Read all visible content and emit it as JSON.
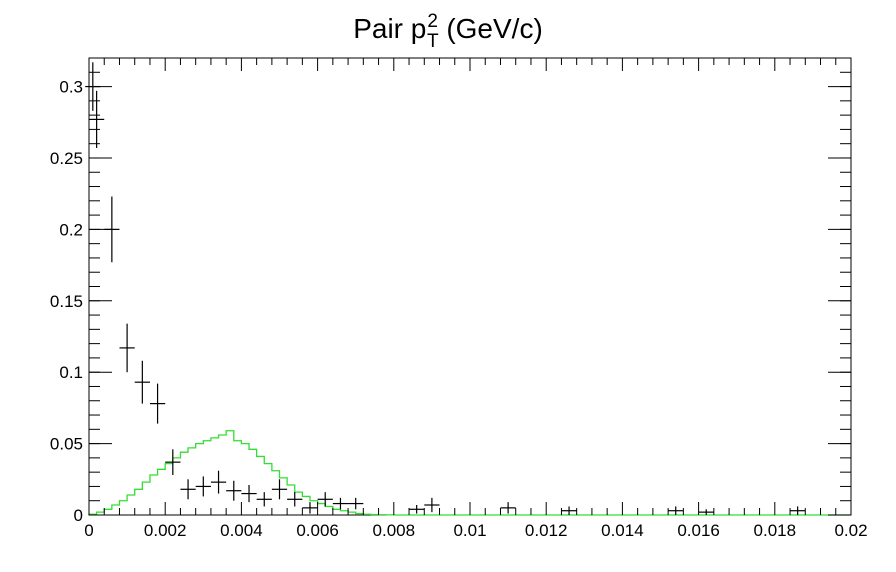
{
  "chart_data": {
    "type": "histogram",
    "title": {
      "main": "Pair p",
      "superscript": "2",
      "subscript": "T",
      "suffix": " (GeV/c)"
    },
    "xlim": [
      0,
      0.02
    ],
    "ylim": [
      0,
      0.32
    ],
    "x_ticks": [
      0,
      0.002,
      0.004,
      0.006,
      0.008,
      0.01,
      0.012,
      0.014,
      0.016,
      0.018,
      0.02
    ],
    "x_tick_labels": [
      "0",
      "0.002",
      "0.004",
      "0.006",
      "0.008",
      "0.01",
      "0.012",
      "0.014",
      "0.016",
      "0.018",
      "0.02"
    ],
    "y_ticks": [
      0,
      0.05,
      0.1,
      0.15,
      0.2,
      0.25,
      0.3
    ],
    "y_tick_labels": [
      "0",
      "0.05",
      "0.1",
      "0.15",
      "0.2",
      "0.25",
      "0.3"
    ],
    "grid": false,
    "legend": "none",
    "data_points": {
      "color": "#000000",
      "bin_half_width": 0.0002,
      "points": [
        {
          "x": 0.0001,
          "y": 0.3,
          "err": 0.017
        },
        {
          "x": 0.0002,
          "y": 0.277,
          "err": 0.02
        },
        {
          "x": 0.0006,
          "y": 0.2,
          "err": 0.023
        },
        {
          "x": 0.001,
          "y": 0.117,
          "err": 0.017
        },
        {
          "x": 0.0014,
          "y": 0.093,
          "err": 0.015
        },
        {
          "x": 0.0018,
          "y": 0.078,
          "err": 0.014
        },
        {
          "x": 0.0022,
          "y": 0.037,
          "err": 0.009
        },
        {
          "x": 0.0026,
          "y": 0.018,
          "err": 0.007
        },
        {
          "x": 0.003,
          "y": 0.02,
          "err": 0.007
        },
        {
          "x": 0.0034,
          "y": 0.023,
          "err": 0.008
        },
        {
          "x": 0.0038,
          "y": 0.017,
          "err": 0.007
        },
        {
          "x": 0.0042,
          "y": 0.015,
          "err": 0.006
        },
        {
          "x": 0.0046,
          "y": 0.011,
          "err": 0.005
        },
        {
          "x": 0.005,
          "y": 0.018,
          "err": 0.007
        },
        {
          "x": 0.0054,
          "y": 0.011,
          "err": 0.005
        },
        {
          "x": 0.0058,
          "y": 0.005,
          "err": 0.004
        },
        {
          "x": 0.0062,
          "y": 0.011,
          "err": 0.005
        },
        {
          "x": 0.0066,
          "y": 0.008,
          "err": 0.004
        },
        {
          "x": 0.007,
          "y": 0.008,
          "err": 0.004
        },
        {
          "x": 0.0086,
          "y": 0.004,
          "err": 0.003
        },
        {
          "x": 0.009,
          "y": 0.007,
          "err": 0.005
        },
        {
          "x": 0.011,
          "y": 0.005,
          "err": 0.004
        },
        {
          "x": 0.0126,
          "y": 0.003,
          "err": 0.003
        },
        {
          "x": 0.0154,
          "y": 0.003,
          "err": 0.003
        },
        {
          "x": 0.0162,
          "y": 0.002,
          "err": 0.002
        },
        {
          "x": 0.0186,
          "y": 0.003,
          "err": 0.003
        }
      ]
    },
    "reference_histogram": {
      "color": "#33dd33",
      "bin_width": 0.0002,
      "values": [
        0.0005,
        0.002,
        0.004,
        0.007,
        0.01,
        0.014,
        0.018,
        0.023,
        0.028,
        0.032,
        0.036,
        0.04,
        0.044,
        0.047,
        0.05,
        0.052,
        0.054,
        0.056,
        0.059,
        0.052,
        0.05,
        0.046,
        0.041,
        0.036,
        0.031,
        0.026,
        0.021,
        0.016,
        0.013,
        0.01,
        0.008,
        0.006,
        0.004,
        0.003,
        0.002,
        0.001,
        0.0005,
        0.0003,
        0.0002,
        0.0001
      ]
    }
  }
}
